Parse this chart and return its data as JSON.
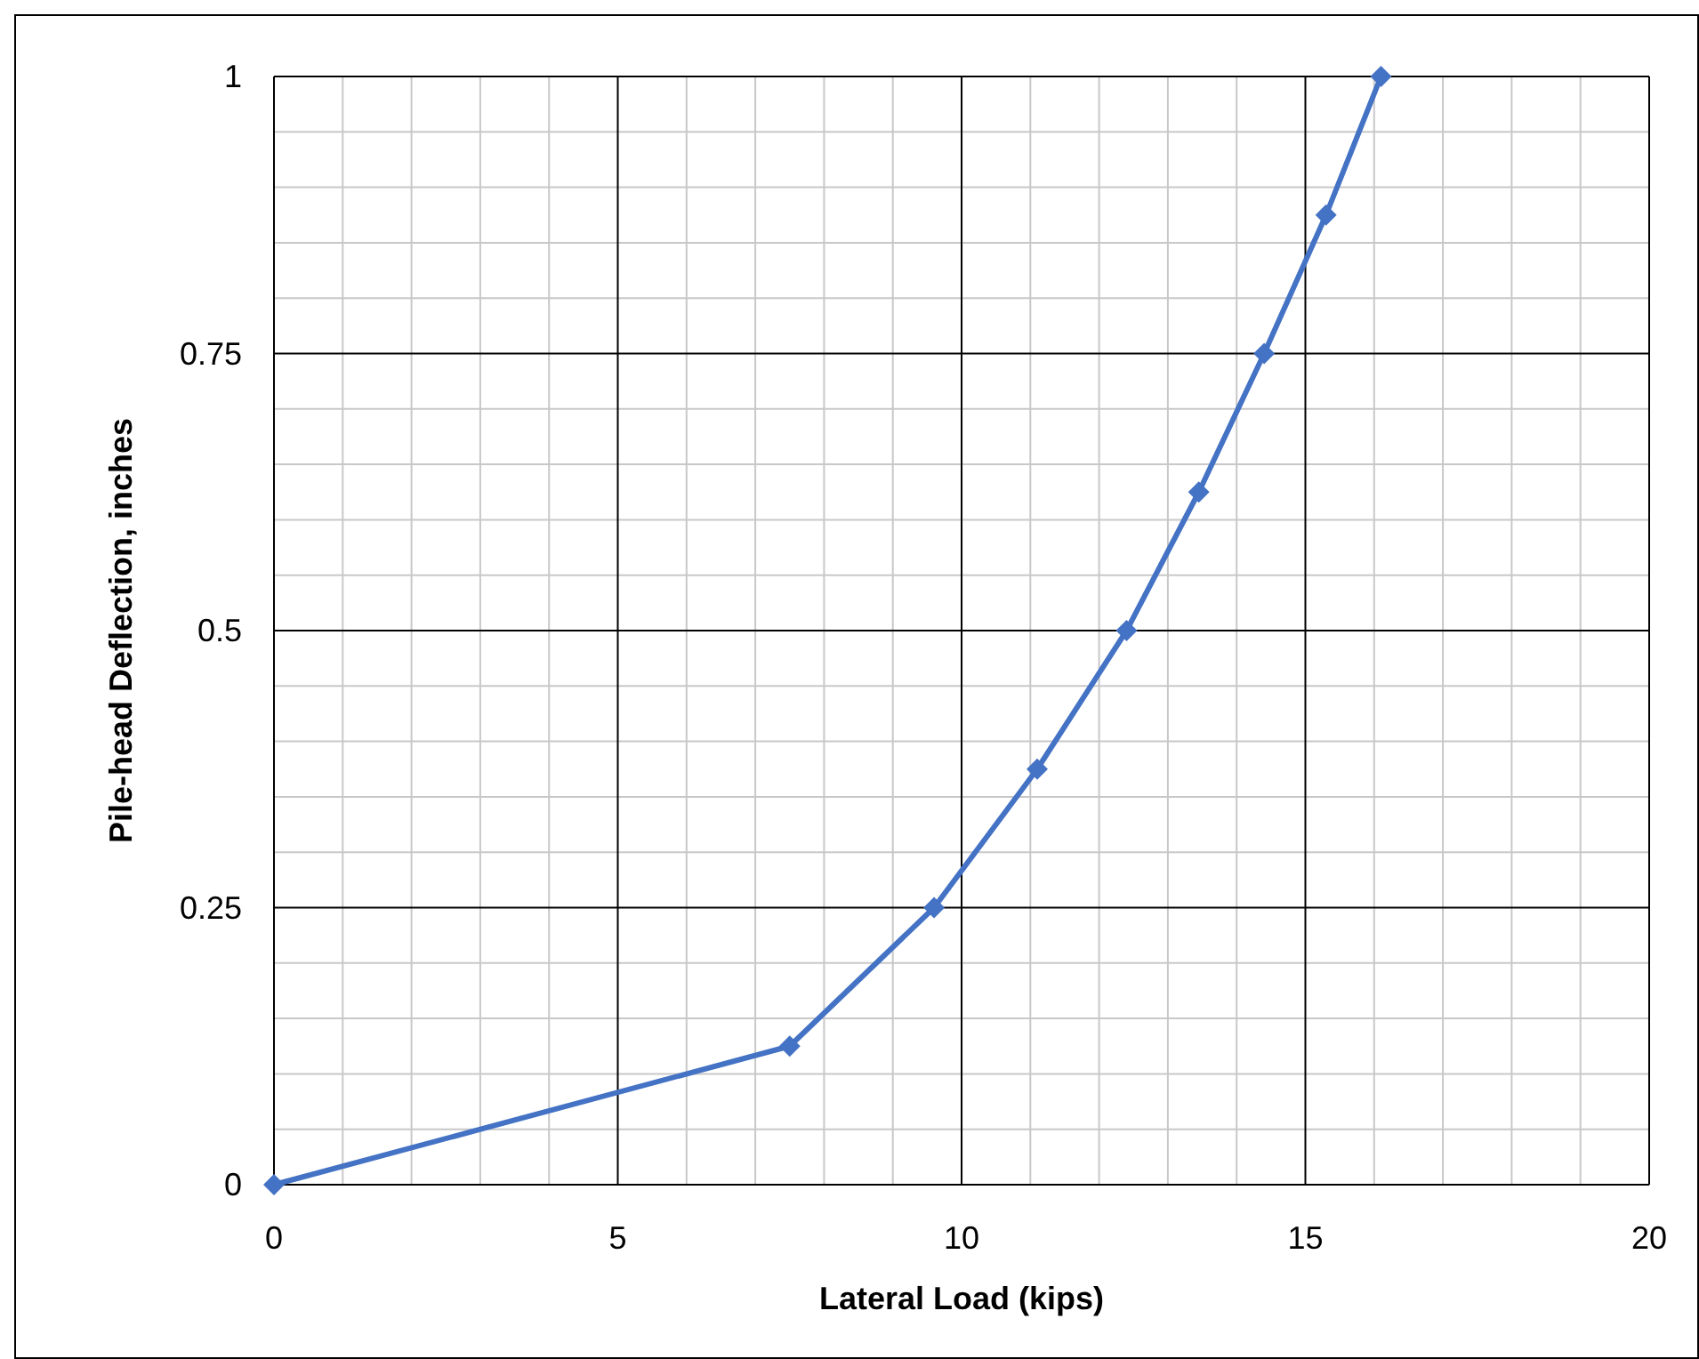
{
  "chart_data": {
    "type": "line",
    "xlabel": "Lateral Load (kips)",
    "ylabel": "Pile-head Deflection, inches",
    "x": [
      0,
      7.5,
      9.6,
      11.1,
      12.4,
      13.45,
      14.4,
      15.3,
      16.1
    ],
    "series": [
      {
        "color": "#4472c4",
        "values": [
          0,
          0.125,
          0.25,
          0.375,
          0.5,
          0.625,
          0.75,
          0.875,
          1
        ]
      }
    ],
    "xlim": [
      0,
      20
    ],
    "xticks": [
      0,
      5,
      10,
      15,
      20
    ],
    "ylim": [
      0,
      1
    ],
    "yticks": [
      0,
      0.25,
      0.5,
      0.75,
      1
    ],
    "grid": true,
    "marker": "diamond",
    "line_style": "solid"
  }
}
